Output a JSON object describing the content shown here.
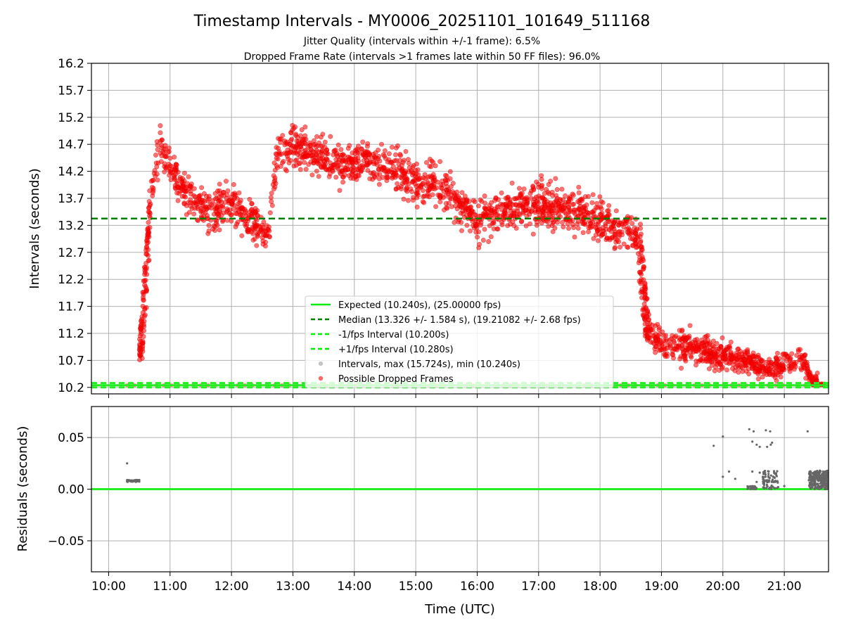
{
  "chart_data": {
    "type": "scatter",
    "title": "Timestamp Intervals - MY0006_20251101_101649_511168",
    "subtitle_1": "Jitter Quality (intervals within +/-1 frame): 6.5%",
    "subtitle_2": "Dropped Frame Rate (intervals >1 frames late within 50 FF files): 96.0%",
    "top": {
      "ylabel": "Intervals (seconds)",
      "ylim": [
        10.08,
        16.2
      ],
      "yticks": [
        "10.2",
        "10.7",
        "11.2",
        "11.7",
        "12.2",
        "12.7",
        "13.2",
        "13.7",
        "14.2",
        "14.7",
        "15.2",
        "15.7",
        "16.2"
      ],
      "expected": 10.24,
      "median": 13.326,
      "minus_interval": 10.2,
      "plus_interval": 10.28,
      "interval_max": 15.724,
      "interval_min": 10.24,
      "dropped_trend": [
        {
          "t": 10.55,
          "v": 10.9,
          "s": 0.15
        },
        {
          "t": 10.62,
          "v": 12.1,
          "s": 0.3
        },
        {
          "t": 10.7,
          "v": 14.0,
          "s": 0.35
        },
        {
          "t": 10.85,
          "v": 14.6,
          "s": 0.3
        },
        {
          "t": 11.0,
          "v": 14.3,
          "s": 0.3
        },
        {
          "t": 11.2,
          "v": 13.9,
          "s": 0.3
        },
        {
          "t": 11.5,
          "v": 13.5,
          "s": 0.3
        },
        {
          "t": 11.8,
          "v": 13.5,
          "s": 0.3
        },
        {
          "t": 12.0,
          "v": 13.6,
          "s": 0.35
        },
        {
          "t": 12.3,
          "v": 13.3,
          "s": 0.3
        },
        {
          "t": 12.6,
          "v": 13.0,
          "s": 0.3
        },
        {
          "t": 12.75,
          "v": 14.5,
          "s": 0.3
        },
        {
          "t": 13.0,
          "v": 14.7,
          "s": 0.3
        },
        {
          "t": 13.4,
          "v": 14.5,
          "s": 0.3
        },
        {
          "t": 13.8,
          "v": 14.3,
          "s": 0.3
        },
        {
          "t": 14.2,
          "v": 14.4,
          "s": 0.3
        },
        {
          "t": 14.6,
          "v": 14.3,
          "s": 0.3
        },
        {
          "t": 15.0,
          "v": 14.0,
          "s": 0.35
        },
        {
          "t": 15.3,
          "v": 14.0,
          "s": 0.35
        },
        {
          "t": 15.6,
          "v": 13.7,
          "s": 0.35
        },
        {
          "t": 16.0,
          "v": 13.3,
          "s": 0.3
        },
        {
          "t": 16.5,
          "v": 13.5,
          "s": 0.3
        },
        {
          "t": 17.0,
          "v": 13.6,
          "s": 0.35
        },
        {
          "t": 17.5,
          "v": 13.5,
          "s": 0.3
        },
        {
          "t": 18.0,
          "v": 13.3,
          "s": 0.3
        },
        {
          "t": 18.3,
          "v": 13.1,
          "s": 0.3
        },
        {
          "t": 18.6,
          "v": 13.0,
          "s": 0.3
        },
        {
          "t": 18.75,
          "v": 11.2,
          "s": 0.25
        },
        {
          "t": 19.0,
          "v": 11.0,
          "s": 0.25
        },
        {
          "t": 19.5,
          "v": 10.95,
          "s": 0.25
        },
        {
          "t": 20.0,
          "v": 10.8,
          "s": 0.2
        },
        {
          "t": 20.5,
          "v": 10.65,
          "s": 0.2
        },
        {
          "t": 20.8,
          "v": 10.5,
          "s": 0.15
        },
        {
          "t": 21.0,
          "v": 10.65,
          "s": 0.2
        },
        {
          "t": 21.3,
          "v": 10.7,
          "s": 0.2
        },
        {
          "t": 21.45,
          "v": 10.35,
          "s": 0.1
        }
      ]
    },
    "bottom": {
      "ylabel": "Residuals (seconds)",
      "xlabel": "Time (UTC)",
      "ylim": [
        -0.08,
        0.08
      ],
      "yticks": [
        "0.05",
        "0.00",
        "−0.05"
      ],
      "ytick_values": [
        0.05,
        0.0,
        -0.05
      ]
    },
    "xlim": [
      9.72,
      21.72
    ],
    "xticks": [
      "10:00",
      "11:00",
      "12:00",
      "13:00",
      "14:00",
      "15:00",
      "16:00",
      "17:00",
      "18:00",
      "19:00",
      "20:00",
      "21:00"
    ],
    "xtick_values": [
      10,
      11,
      12,
      13,
      14,
      15,
      16,
      17,
      18,
      19,
      20,
      21
    ],
    "legend": {
      "position": "lower-center",
      "entries": [
        {
          "label": "Expected (10.240s), (25.00000 fps)",
          "color": "#00ee00",
          "style": "solid"
        },
        {
          "label": "Median (13.326 +/- 1.584 s), (19.21082 +/- 2.68 fps)",
          "color": "#008000",
          "style": "dashed"
        },
        {
          "label": "-1/fps Interval (10.200s)",
          "color": "#00ee00",
          "style": "dashed"
        },
        {
          "label": "+1/fps Interval (10.280s)",
          "color": "#00ee00",
          "style": "dashed"
        },
        {
          "label": "Intervals, max (15.724s), min (10.240s)",
          "color": "#a0a0a0",
          "style": "marker"
        },
        {
          "label": "Possible Dropped Frames",
          "color": "#ff0000",
          "style": "marker"
        }
      ]
    },
    "colors": {
      "dropped": "#ff0000",
      "interval": "#a0a0a0",
      "residual": "#666666",
      "expected": "#22ee22",
      "median": "#008000",
      "grid": "#b0b0b0"
    }
  }
}
